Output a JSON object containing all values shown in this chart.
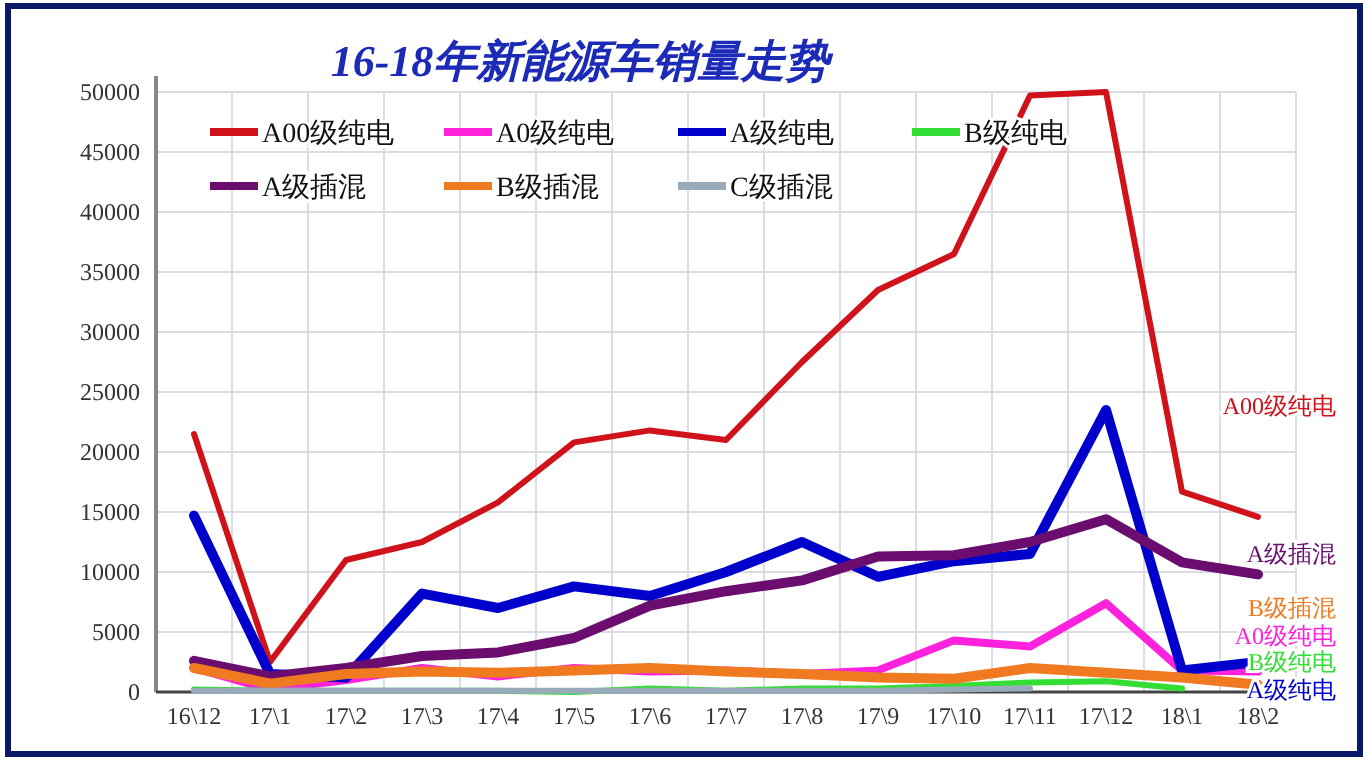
{
  "chart_data": {
    "type": "line",
    "title": "16-18年新能源车销量走势",
    "categories": [
      "16\\12",
      "17\\1",
      "17\\2",
      "17\\3",
      "17\\4",
      "17\\5",
      "17\\6",
      "17\\7",
      "17\\8",
      "17\\9",
      "17\\10",
      "17\\11",
      "17\\12",
      "18\\1",
      "18\\2"
    ],
    "series": [
      {
        "name": "A00级纯电",
        "color": "#d0121b",
        "values": [
          21500,
          2500,
          11000,
          12500,
          15800,
          20800,
          21800,
          21000,
          27500,
          33500,
          36500,
          49700,
          50000,
          16700,
          14600
        ]
      },
      {
        "name": "A0级纯电",
        "color": "#ff22dd",
        "values": [
          2000,
          200,
          1000,
          2000,
          1300,
          2000,
          1700,
          1800,
          1500,
          1800,
          4300,
          3800,
          7400,
          1800,
          1700
        ]
      },
      {
        "name": "A级纯电",
        "color": "#0000cc",
        "values": [
          14700,
          1500,
          1200,
          8200,
          7000,
          8800,
          8000,
          10000,
          12500,
          9600,
          10900,
          11500,
          23500,
          1800,
          2500
        ]
      },
      {
        "name": "B级纯电",
        "color": "#33dd33",
        "values": [
          200,
          100,
          100,
          100,
          100,
          0,
          300,
          100,
          300,
          300,
          500,
          800,
          900,
          300,
          null
        ]
      },
      {
        "name": "A级插混",
        "color": "#6a0d6f",
        "values": [
          2600,
          1300,
          2000,
          3000,
          3300,
          4500,
          7200,
          8400,
          9300,
          11300,
          11400,
          12500,
          14400,
          10800,
          9800
        ]
      },
      {
        "name": "B级插混",
        "color": "#f07a20",
        "values": [
          2000,
          700,
          1500,
          1700,
          1600,
          1800,
          2000,
          1700,
          1500,
          1200,
          1100,
          2000,
          1600,
          1200,
          600
        ]
      },
      {
        "name": "C级插混",
        "color": "#99aabb",
        "values": [
          100,
          100,
          100,
          100,
          100,
          100,
          100,
          100,
          100,
          100,
          200,
          300,
          null,
          null,
          null
        ]
      }
    ],
    "ylim": [
      0,
      50000
    ],
    "yticks": [
      0,
      5000,
      10000,
      15000,
      20000,
      25000,
      30000,
      35000,
      40000,
      45000,
      50000
    ],
    "grid": true,
    "legend": "top",
    "marker": "none",
    "line_style": "solid",
    "annotations": [
      "A00级纯电",
      "A级插混",
      "B级插混",
      "A0级纯电",
      "B级纯电",
      "A级纯电"
    ]
  }
}
